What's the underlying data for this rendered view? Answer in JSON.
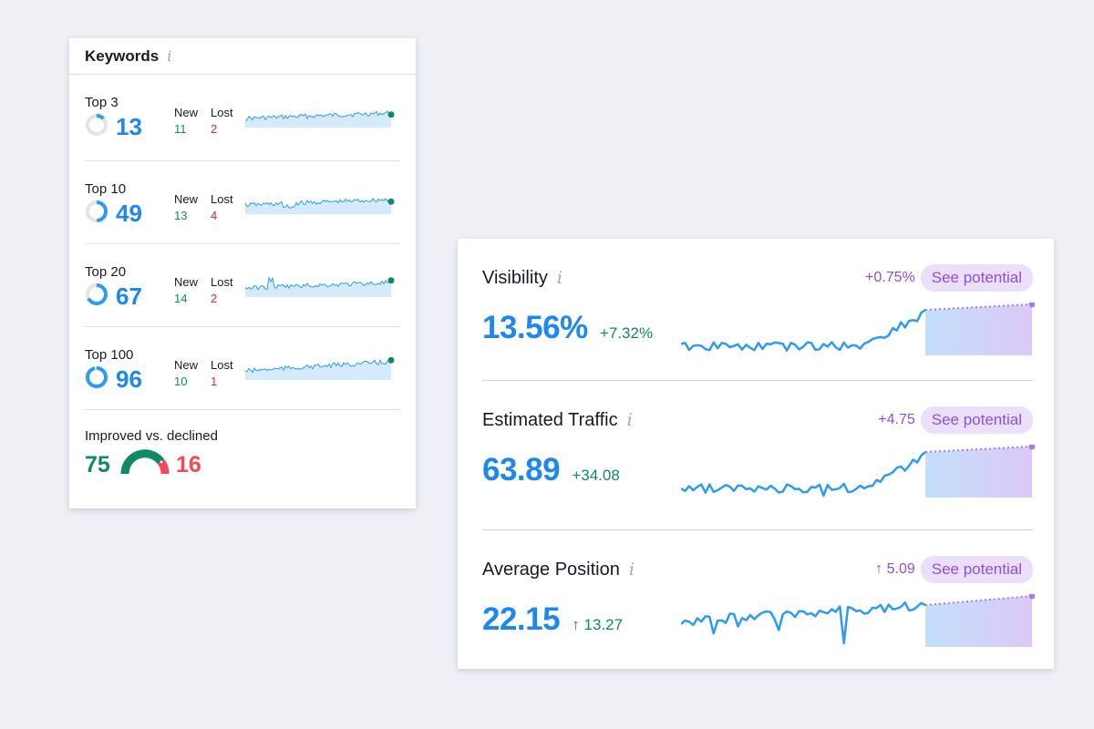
{
  "keywords": {
    "title": "Keywords",
    "info_glyph": "i",
    "new_label": "New",
    "lost_label": "Lost",
    "rows": [
      {
        "label": "Top 3",
        "value": "13",
        "new": "11",
        "lost": "2",
        "ring_fraction": 0.13
      },
      {
        "label": "Top 10",
        "value": "49",
        "new": "13",
        "lost": "4",
        "ring_fraction": 0.49
      },
      {
        "label": "Top 20",
        "value": "67",
        "new": "14",
        "lost": "2",
        "ring_fraction": 0.67
      },
      {
        "label": "Top 100",
        "value": "96",
        "new": "10",
        "lost": "1",
        "ring_fraction": 0.96
      }
    ],
    "improved": {
      "label": "Improved vs. declined",
      "improved": "75",
      "declined": "16"
    }
  },
  "metrics": [
    {
      "title": "Visibility",
      "value": "13.56%",
      "delta": "+7.32%",
      "potential_delta": "+0.75%",
      "potential_label": "See potential"
    },
    {
      "title": "Estimated Traffic",
      "value": "63.89",
      "delta": "+34.08",
      "potential_delta": "+4.75",
      "potential_label": "See potential"
    },
    {
      "title": "Average Position",
      "value": "22.15",
      "delta": "↑ 13.27",
      "potential_delta": "↑ 5.09",
      "potential_label": "See potential"
    }
  ],
  "colors": {
    "accent_blue": "#1e88ee",
    "positive_green": "#0f8a64",
    "negative_red": "#e3223b",
    "potential_purple": "#8b4fe0",
    "ring_track": "#e2e4ea"
  },
  "icons": [
    "info-icon"
  ]
}
